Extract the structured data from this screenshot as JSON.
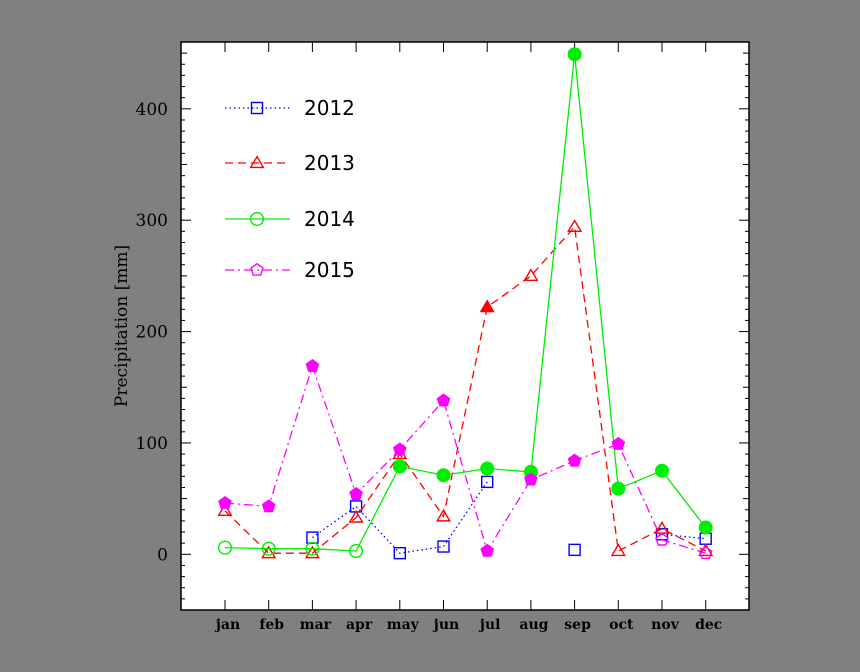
{
  "chart_data": {
    "type": "line",
    "title": "",
    "xlabel": "",
    "ylabel": "Precipitation [mm]",
    "categories": [
      "jan",
      "feb",
      "mar",
      "apr",
      "may",
      "jun",
      "jul",
      "aug",
      "sep",
      "oct",
      "nov",
      "dec"
    ],
    "ylim": [
      -50,
      460
    ],
    "yticks": [
      0,
      100,
      200,
      300,
      400
    ],
    "grid": false,
    "legend_position": "top-left",
    "series": [
      {
        "name": "2012",
        "color": "#0000ff",
        "dash": "dotted",
        "marker": "square",
        "values": [
          null,
          null,
          15,
          43,
          1,
          7,
          65,
          null,
          4,
          null,
          18,
          14
        ],
        "filled": [
          false,
          false,
          false,
          false,
          false,
          false,
          false,
          false,
          false,
          false,
          false,
          false
        ]
      },
      {
        "name": "2013",
        "color": "#ff0000",
        "dash": "dashed",
        "marker": "triangle",
        "values": [
          39,
          1,
          1,
          33,
          90,
          34,
          222,
          250,
          294,
          3,
          23,
          3
        ],
        "filled": [
          false,
          false,
          false,
          false,
          false,
          false,
          true,
          false,
          false,
          false,
          false,
          false
        ]
      },
      {
        "name": "2014",
        "color": "#00ee00",
        "dash": "solid",
        "marker": "circle",
        "values": [
          6,
          5,
          5,
          3,
          79,
          71,
          77,
          74,
          449,
          59,
          75,
          24
        ],
        "filled": [
          false,
          false,
          false,
          false,
          true,
          true,
          true,
          true,
          true,
          true,
          true,
          true
        ]
      },
      {
        "name": "2015",
        "color": "#ff00ff",
        "dash": "dashdot",
        "marker": "pentagon",
        "values": [
          46,
          43,
          169,
          54,
          94,
          138,
          3,
          67,
          84,
          99,
          13,
          1
        ],
        "filled": [
          true,
          true,
          true,
          true,
          true,
          true,
          true,
          true,
          true,
          true,
          false,
          false
        ]
      }
    ]
  }
}
